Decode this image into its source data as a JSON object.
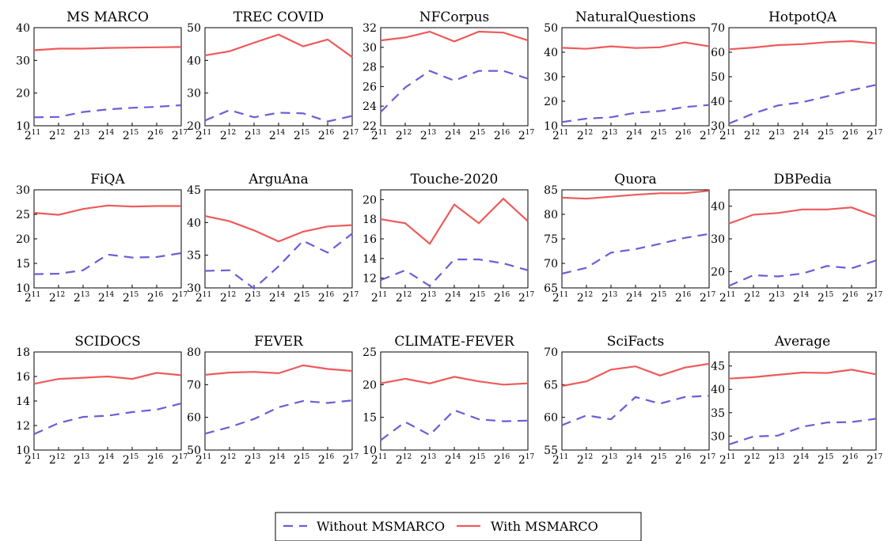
{
  "x_ticks": [
    "11",
    "12",
    "13",
    "14",
    "15",
    "16",
    "17"
  ],
  "x_base": "2",
  "colors": {
    "without": "#6a5ed6",
    "with": "#ee5a5a"
  },
  "legend": {
    "without_label": "Without MSMARCO",
    "with_label": "With MSMARCO"
  },
  "chart_data": [
    {
      "type": "line",
      "title": "MS MARCO",
      "x": [
        11,
        12,
        13,
        14,
        15,
        16,
        17
      ],
      "ylim": [
        10,
        40
      ],
      "yticks": [
        10,
        20,
        30,
        40
      ],
      "series": [
        {
          "name": "Without MSMARCO",
          "values": [
            12.6,
            12.7,
            14.2,
            15.0,
            15.5,
            15.8,
            16.3
          ]
        },
        {
          "name": "With MSMARCO",
          "values": [
            33.1,
            33.6,
            33.6,
            33.8,
            33.9,
            34.0,
            34.1
          ]
        }
      ]
    },
    {
      "type": "line",
      "title": "TREC COVID",
      "x": [
        11,
        12,
        13,
        14,
        15,
        16,
        17
      ],
      "ylim": [
        20,
        50
      ],
      "yticks": [
        20,
        30,
        40,
        50
      ],
      "series": [
        {
          "name": "Without MSMARCO",
          "values": [
            21.6,
            24.8,
            22.6,
            24.0,
            23.8,
            21.3,
            23.0
          ]
        },
        {
          "name": "With MSMARCO",
          "values": [
            41.5,
            42.8,
            45.4,
            47.9,
            44.3,
            46.4,
            41.0
          ]
        }
      ]
    },
    {
      "type": "line",
      "title": "NFCorpus",
      "x": [
        11,
        12,
        13,
        14,
        15,
        16,
        17
      ],
      "ylim": [
        22,
        32
      ],
      "yticks": [
        22,
        24,
        26,
        28,
        30,
        32
      ],
      "series": [
        {
          "name": "Without MSMARCO",
          "values": [
            23.4,
            25.9,
            27.6,
            26.6,
            27.6,
            27.6,
            26.8
          ]
        },
        {
          "name": "With MSMARCO",
          "values": [
            30.7,
            31.0,
            31.6,
            30.6,
            31.6,
            31.5,
            30.7
          ]
        }
      ]
    },
    {
      "type": "line",
      "title": "NaturalQuestions",
      "x": [
        11,
        12,
        13,
        14,
        15,
        16,
        17
      ],
      "ylim": [
        10,
        50
      ],
      "yticks": [
        10,
        20,
        30,
        40,
        50
      ],
      "series": [
        {
          "name": "Without MSMARCO",
          "values": [
            11.5,
            12.9,
            13.5,
            15.3,
            16.0,
            17.6,
            18.5
          ]
        },
        {
          "name": "With MSMARCO",
          "values": [
            41.8,
            41.4,
            42.4,
            41.7,
            42.0,
            44.0,
            42.4
          ]
        }
      ]
    },
    {
      "type": "line",
      "title": "HotpotQA",
      "x": [
        11,
        12,
        13,
        14,
        15,
        16,
        17
      ],
      "ylim": [
        30,
        70
      ],
      "yticks": [
        30,
        40,
        50,
        60,
        70
      ],
      "series": [
        {
          "name": "Without MSMARCO",
          "values": [
            30.9,
            35.0,
            38.3,
            39.6,
            42.0,
            44.5,
            46.7
          ]
        },
        {
          "name": "With MSMARCO",
          "values": [
            61.2,
            61.9,
            62.9,
            63.3,
            64.1,
            64.5,
            63.6
          ]
        }
      ]
    },
    {
      "type": "line",
      "title": "FiQA",
      "x": [
        11,
        12,
        13,
        14,
        15,
        16,
        17
      ],
      "ylim": [
        10,
        30
      ],
      "yticks": [
        10,
        15,
        20,
        25,
        30
      ],
      "series": [
        {
          "name": "Without MSMARCO",
          "values": [
            12.8,
            12.9,
            13.6,
            16.8,
            16.2,
            16.3,
            17.1
          ]
        },
        {
          "name": "With MSMARCO",
          "values": [
            25.3,
            24.9,
            26.1,
            26.8,
            26.6,
            26.7,
            26.7
          ]
        }
      ]
    },
    {
      "type": "line",
      "title": "ArguAna",
      "x": [
        11,
        12,
        13,
        14,
        15,
        16,
        17
      ],
      "ylim": [
        30,
        45
      ],
      "yticks": [
        30,
        35,
        40,
        45
      ],
      "series": [
        {
          "name": "Without MSMARCO",
          "values": [
            32.6,
            32.7,
            29.9,
            33.3,
            37.2,
            35.4,
            38.3
          ]
        },
        {
          "name": "With MSMARCO",
          "values": [
            41.0,
            40.2,
            38.8,
            37.1,
            38.6,
            39.4,
            39.6
          ]
        }
      ]
    },
    {
      "type": "line",
      "title": "Touche-2020",
      "x": [
        11,
        12,
        13,
        14,
        15,
        16,
        17
      ],
      "ylim": [
        11,
        21
      ],
      "yticks": [
        12,
        14,
        16,
        18,
        20
      ],
      "series": [
        {
          "name": "Without MSMARCO",
          "values": [
            11.8,
            12.8,
            11.2,
            13.9,
            13.9,
            13.5,
            12.8
          ]
        },
        {
          "name": "With MSMARCO",
          "values": [
            18.0,
            17.6,
            15.5,
            19.5,
            17.6,
            20.1,
            17.8
          ]
        }
      ]
    },
    {
      "type": "line",
      "title": "Quora",
      "x": [
        11,
        12,
        13,
        14,
        15,
        16,
        17
      ],
      "ylim": [
        65,
        85
      ],
      "yticks": [
        65,
        70,
        75,
        80,
        85
      ],
      "series": [
        {
          "name": "Without MSMARCO",
          "values": [
            67.9,
            69.1,
            72.2,
            72.9,
            74.0,
            75.2,
            76.0
          ]
        },
        {
          "name": "With MSMARCO",
          "values": [
            83.4,
            83.2,
            83.6,
            84.0,
            84.3,
            84.3,
            84.8
          ]
        }
      ]
    },
    {
      "type": "line",
      "title": "DBPedia",
      "x": [
        11,
        12,
        13,
        14,
        15,
        16,
        17
      ],
      "ylim": [
        15,
        45
      ],
      "yticks": [
        20,
        30,
        40
      ],
      "series": [
        {
          "name": "Without MSMARCO",
          "values": [
            15.6,
            18.9,
            18.5,
            19.4,
            21.7,
            21.0,
            23.4
          ]
        },
        {
          "name": "With MSMARCO",
          "values": [
            34.7,
            37.4,
            37.9,
            39.0,
            39.0,
            39.6,
            36.8
          ]
        }
      ]
    },
    {
      "type": "line",
      "title": "SCIDOCS",
      "x": [
        11,
        12,
        13,
        14,
        15,
        16,
        17
      ],
      "ylim": [
        10,
        18
      ],
      "yticks": [
        10,
        12,
        14,
        16,
        18
      ],
      "series": [
        {
          "name": "Without MSMARCO",
          "values": [
            11.3,
            12.2,
            12.7,
            12.8,
            13.1,
            13.3,
            13.8
          ]
        },
        {
          "name": "With MSMARCO",
          "values": [
            15.4,
            15.8,
            15.9,
            16.0,
            15.8,
            16.3,
            16.1
          ]
        }
      ]
    },
    {
      "type": "line",
      "title": "FEVER",
      "x": [
        11,
        12,
        13,
        14,
        15,
        16,
        17
      ],
      "ylim": [
        50,
        80
      ],
      "yticks": [
        50,
        60,
        70,
        80
      ],
      "series": [
        {
          "name": "Without MSMARCO",
          "values": [
            55.0,
            57.0,
            59.5,
            63.1,
            65.0,
            64.4,
            65.2
          ]
        },
        {
          "name": "With MSMARCO",
          "values": [
            73.0,
            73.7,
            73.9,
            73.5,
            75.9,
            74.8,
            74.2
          ]
        }
      ]
    },
    {
      "type": "line",
      "title": "CLIMATE-FEVER",
      "x": [
        11,
        12,
        13,
        14,
        15,
        16,
        17
      ],
      "ylim": [
        10,
        25
      ],
      "yticks": [
        10,
        15,
        20,
        25
      ],
      "series": [
        {
          "name": "Without MSMARCO",
          "values": [
            11.5,
            14.3,
            12.3,
            16.1,
            14.7,
            14.4,
            14.5
          ]
        },
        {
          "name": "With MSMARCO",
          "values": [
            20.2,
            20.9,
            20.2,
            21.2,
            20.5,
            20.0,
            20.2
          ]
        }
      ]
    },
    {
      "type": "line",
      "title": "SciFacts",
      "x": [
        11,
        12,
        13,
        14,
        15,
        16,
        17
      ],
      "ylim": [
        55,
        70
      ],
      "yticks": [
        55,
        60,
        65,
        70
      ],
      "series": [
        {
          "name": "Without MSMARCO",
          "values": [
            58.8,
            60.3,
            59.7,
            63.1,
            62.1,
            63.1,
            63.3
          ]
        },
        {
          "name": "With MSMARCO",
          "values": [
            64.8,
            65.5,
            67.3,
            67.8,
            66.4,
            67.6,
            68.2
          ]
        }
      ]
    },
    {
      "type": "line",
      "title": "Average",
      "x": [
        11,
        12,
        13,
        14,
        15,
        16,
        17
      ],
      "ylim": [
        27,
        48
      ],
      "yticks": [
        30,
        35,
        40,
        45
      ],
      "series": [
        {
          "name": "Without MSMARCO",
          "values": [
            28.2,
            29.9,
            30.1,
            32.0,
            32.9,
            33.0,
            33.7
          ]
        },
        {
          "name": "With MSMARCO",
          "values": [
            42.3,
            42.6,
            43.1,
            43.6,
            43.5,
            44.2,
            43.2
          ]
        }
      ]
    }
  ]
}
